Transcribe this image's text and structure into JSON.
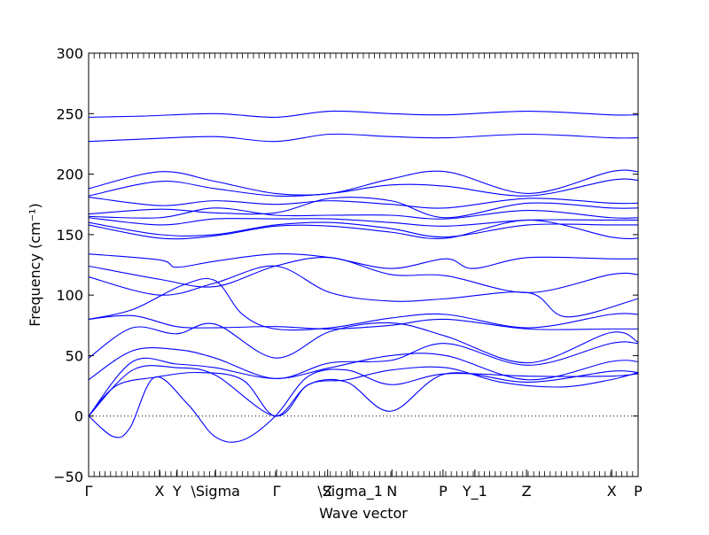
{
  "chart_data": {
    "type": "line",
    "title": "",
    "xlabel": "Wave vector",
    "ylabel": "Frequency (cm⁻¹)",
    "ylim": [
      -50,
      300
    ],
    "xlim": [
      0,
      1
    ],
    "yticks": [
      -50,
      0,
      50,
      100,
      150,
      200,
      250,
      300
    ],
    "colors": {
      "bands": "#0000ff",
      "zero_line": "#000000",
      "axes": "#000000"
    },
    "grid": false,
    "legend": "none",
    "zero_line_style": "dotted",
    "high_symmetry_points": [
      {
        "label": "Γ",
        "x": 0.0
      },
      {
        "label": "X",
        "x": 0.129
      },
      {
        "label": "Y",
        "x": 0.161
      },
      {
        "label": "\\Sigma",
        "x": 0.231
      },
      {
        "label": "Γ",
        "x": 0.342
      },
      {
        "label": "Z",
        "x": 0.435
      },
      {
        "label": "\\Sigma_1",
        "x": 0.476
      },
      {
        "label": "N",
        "x": 0.552
      },
      {
        "label": "P",
        "x": 0.645
      },
      {
        "label": "Y_1",
        "x": 0.703
      },
      {
        "label": "Z",
        "x": 0.797
      },
      {
        "label": "X",
        "x": 0.952
      },
      {
        "label": "P",
        "x": 1.0
      }
    ],
    "series": [
      {
        "points": [
          [
            0,
            247
          ],
          [
            0.1,
            248
          ],
          [
            0.23,
            250
          ],
          [
            0.34,
            247
          ],
          [
            0.44,
            252
          ],
          [
            0.55,
            250
          ],
          [
            0.65,
            249
          ],
          [
            0.8,
            252
          ],
          [
            0.95,
            249
          ],
          [
            1,
            249
          ]
        ]
      },
      {
        "points": [
          [
            0,
            227
          ],
          [
            0.1,
            229
          ],
          [
            0.23,
            231
          ],
          [
            0.34,
            227
          ],
          [
            0.44,
            233
          ],
          [
            0.55,
            231
          ],
          [
            0.65,
            230
          ],
          [
            0.8,
            233
          ],
          [
            0.95,
            230
          ],
          [
            1,
            230
          ]
        ]
      },
      {
        "points": [
          [
            0,
            188
          ],
          [
            0.13,
            202
          ],
          [
            0.23,
            194
          ],
          [
            0.34,
            184
          ],
          [
            0.44,
            184
          ],
          [
            0.55,
            196
          ],
          [
            0.65,
            202
          ],
          [
            0.8,
            184
          ],
          [
            0.95,
            202
          ],
          [
            1,
            202
          ]
        ]
      },
      {
        "points": [
          [
            0,
            182
          ],
          [
            0.13,
            194
          ],
          [
            0.23,
            188
          ],
          [
            0.34,
            182
          ],
          [
            0.44,
            184
          ],
          [
            0.55,
            191
          ],
          [
            0.65,
            190
          ],
          [
            0.8,
            182
          ],
          [
            0.95,
            195
          ],
          [
            1,
            195
          ]
        ]
      },
      {
        "points": [
          [
            0,
            181
          ],
          [
            0.13,
            174
          ],
          [
            0.23,
            178
          ],
          [
            0.34,
            175
          ],
          [
            0.44,
            178
          ],
          [
            0.55,
            175
          ],
          [
            0.65,
            172
          ],
          [
            0.8,
            180
          ],
          [
            0.95,
            176
          ],
          [
            1,
            176
          ]
        ]
      },
      {
        "points": [
          [
            0,
            167
          ],
          [
            0.13,
            171
          ],
          [
            0.23,
            168
          ],
          [
            0.34,
            168
          ],
          [
            0.44,
            180
          ],
          [
            0.55,
            178
          ],
          [
            0.65,
            164
          ],
          [
            0.8,
            176
          ],
          [
            0.95,
            172
          ],
          [
            1,
            172
          ]
        ]
      },
      {
        "points": [
          [
            0,
            165
          ],
          [
            0.13,
            164
          ],
          [
            0.23,
            172
          ],
          [
            0.34,
            166
          ],
          [
            0.44,
            166
          ],
          [
            0.55,
            166
          ],
          [
            0.65,
            163
          ],
          [
            0.8,
            170
          ],
          [
            0.95,
            164
          ],
          [
            1,
            164
          ]
        ]
      },
      {
        "points": [
          [
            0,
            164
          ],
          [
            0.13,
            158
          ],
          [
            0.23,
            163
          ],
          [
            0.34,
            163
          ],
          [
            0.44,
            163
          ],
          [
            0.55,
            160
          ],
          [
            0.65,
            157
          ],
          [
            0.8,
            162
          ],
          [
            0.95,
            162
          ],
          [
            1,
            162
          ]
        ]
      },
      {
        "points": [
          [
            0,
            160
          ],
          [
            0.13,
            150
          ],
          [
            0.23,
            150
          ],
          [
            0.34,
            158
          ],
          [
            0.44,
            160
          ],
          [
            0.55,
            155
          ],
          [
            0.65,
            148
          ],
          [
            0.8,
            158
          ],
          [
            0.95,
            158
          ],
          [
            1,
            158
          ]
        ]
      },
      {
        "points": [
          [
            0,
            158
          ],
          [
            0.13,
            147
          ],
          [
            0.23,
            149
          ],
          [
            0.34,
            157
          ],
          [
            0.44,
            157
          ],
          [
            0.55,
            152
          ],
          [
            0.65,
            147
          ],
          [
            0.8,
            162
          ],
          [
            0.95,
            148
          ],
          [
            1,
            147
          ]
        ]
      },
      {
        "points": [
          [
            0,
            134
          ],
          [
            0.13,
            129
          ],
          [
            0.16,
            123
          ],
          [
            0.23,
            128
          ],
          [
            0.34,
            134
          ],
          [
            0.44,
            131
          ],
          [
            0.55,
            122
          ],
          [
            0.65,
            130
          ],
          [
            0.7,
            122
          ],
          [
            0.8,
            131
          ],
          [
            0.95,
            130
          ],
          [
            1,
            130
          ]
        ]
      },
      {
        "points": [
          [
            0,
            124
          ],
          [
            0.13,
            113
          ],
          [
            0.23,
            107
          ],
          [
            0.34,
            124
          ],
          [
            0.44,
            131
          ],
          [
            0.55,
            117
          ],
          [
            0.65,
            116
          ],
          [
            0.8,
            102
          ],
          [
            0.95,
            117
          ],
          [
            1,
            117
          ]
        ]
      },
      {
        "points": [
          [
            0,
            115
          ],
          [
            0.13,
            100
          ],
          [
            0.23,
            110
          ],
          [
            0.34,
            124
          ],
          [
            0.44,
            102
          ],
          [
            0.55,
            95
          ],
          [
            0.65,
            97
          ],
          [
            0.8,
            102
          ],
          [
            0.87,
            82
          ],
          [
            1,
            97
          ]
        ]
      },
      {
        "points": [
          [
            0,
            80
          ],
          [
            0.08,
            88
          ],
          [
            0.17,
            108
          ],
          [
            0.23,
            112
          ],
          [
            0.28,
            84
          ],
          [
            0.34,
            72
          ],
          [
            0.44,
            73
          ],
          [
            0.55,
            81
          ],
          [
            0.65,
            84
          ],
          [
            0.8,
            73
          ],
          [
            0.95,
            84
          ],
          [
            1,
            84
          ]
        ]
      },
      {
        "points": [
          [
            0,
            80
          ],
          [
            0.08,
            83
          ],
          [
            0.16,
            74
          ],
          [
            0.23,
            73
          ],
          [
            0.34,
            74
          ],
          [
            0.44,
            72
          ],
          [
            0.55,
            75
          ],
          [
            0.65,
            80
          ],
          [
            0.8,
            72
          ],
          [
            0.95,
            72
          ],
          [
            1,
            72
          ]
        ]
      },
      {
        "points": [
          [
            0,
            48
          ],
          [
            0.08,
            73
          ],
          [
            0.16,
            68
          ],
          [
            0.23,
            76
          ],
          [
            0.34,
            48
          ],
          [
            0.44,
            70
          ],
          [
            0.55,
            77
          ],
          [
            0.65,
            66
          ],
          [
            0.8,
            44
          ],
          [
            0.95,
            69
          ],
          [
            1,
            61
          ]
        ]
      },
      {
        "points": [
          [
            0,
            30
          ],
          [
            0.08,
            54
          ],
          [
            0.16,
            55
          ],
          [
            0.23,
            48
          ],
          [
            0.34,
            31
          ],
          [
            0.44,
            44
          ],
          [
            0.55,
            46
          ],
          [
            0.65,
            60
          ],
          [
            0.8,
            42
          ],
          [
            0.95,
            60
          ],
          [
            1,
            60
          ]
        ]
      },
      {
        "points": [
          [
            0,
            0
          ],
          [
            0.08,
            45
          ],
          [
            0.16,
            43
          ],
          [
            0.23,
            40
          ],
          [
            0.34,
            31
          ],
          [
            0.44,
            40
          ],
          [
            0.55,
            50
          ],
          [
            0.65,
            50
          ],
          [
            0.8,
            30
          ],
          [
            0.95,
            45
          ],
          [
            1,
            45
          ]
        ]
      },
      {
        "points": [
          [
            0,
            0
          ],
          [
            0.08,
            38
          ],
          [
            0.16,
            40
          ],
          [
            0.23,
            34
          ],
          [
            0.34,
            0
          ],
          [
            0.4,
            26
          ],
          [
            0.47,
            28
          ],
          [
            0.55,
            4
          ],
          [
            0.65,
            35
          ],
          [
            0.8,
            28
          ],
          [
            0.95,
            37
          ],
          [
            1,
            36
          ]
        ]
      },
      {
        "points": [
          [
            0,
            0
          ],
          [
            0.045,
            -17
          ],
          [
            0.075,
            -10
          ],
          [
            0.12,
            32
          ],
          [
            0.18,
            10
          ],
          [
            0.23,
            -17
          ],
          [
            0.28,
            -20
          ],
          [
            0.34,
            0
          ],
          [
            0.4,
            33
          ],
          [
            0.47,
            38
          ],
          [
            0.55,
            26
          ],
          [
            0.65,
            35
          ],
          [
            0.8,
            33
          ],
          [
            0.95,
            33
          ],
          [
            1,
            35
          ]
        ]
      },
      {
        "points": [
          [
            0,
            0
          ],
          [
            0.05,
            25
          ],
          [
            0.12,
            32
          ],
          [
            0.2,
            36
          ],
          [
            0.28,
            30
          ],
          [
            0.34,
            0
          ],
          [
            0.4,
            26
          ],
          [
            0.47,
            30
          ],
          [
            0.55,
            38
          ],
          [
            0.65,
            40
          ],
          [
            0.75,
            28
          ],
          [
            0.86,
            24
          ],
          [
            0.95,
            30
          ],
          [
            1,
            36
          ]
        ]
      }
    ]
  }
}
